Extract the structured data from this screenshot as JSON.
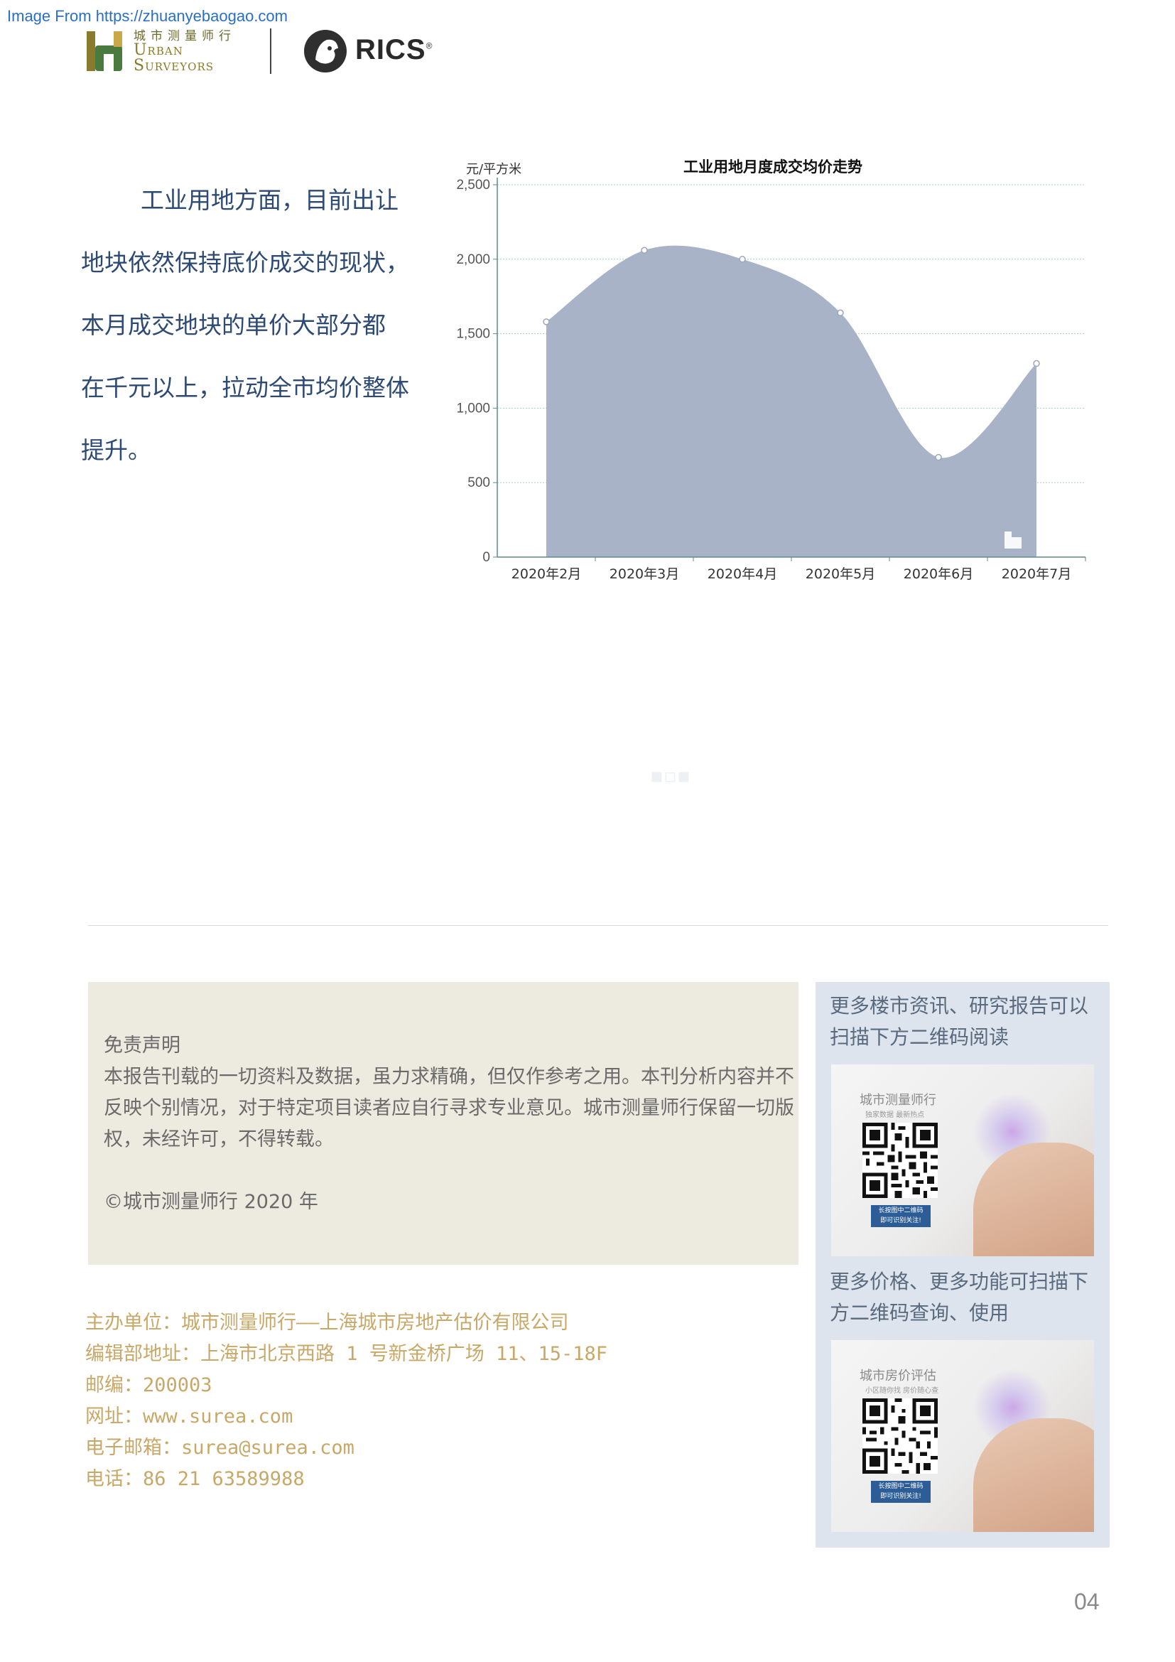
{
  "source_note": "Image From https://zhuanyebaogao.com",
  "header": {
    "logo_cn": "城市测量师行",
    "logo_en_line1": "Urban",
    "logo_en_line2": "Surveyors",
    "rics_label": "RICS",
    "rics_reg": "®"
  },
  "paragraph": {
    "line1": "工业用地方面，目前出让",
    "line2": "地块依然保持底价成交的现状，",
    "line3": "本月成交地块的单价大部分都",
    "line4": "在千元以上，拉动全市均价整体",
    "line5": "提升。"
  },
  "chart_data": {
    "type": "area",
    "title": "工业用地月度成交均价走势",
    "ylabel": "元/平方米",
    "xlabel": "",
    "categories": [
      "2020年2月",
      "2020年3月",
      "2020年4月",
      "2020年5月",
      "2020年6月",
      "2020年7月"
    ],
    "values": [
      1580,
      2060,
      2000,
      1640,
      670,
      1300
    ],
    "ylim": [
      0,
      2500
    ],
    "yticks": [
      "0",
      "500",
      "1,000",
      "1,500",
      "2,000",
      "2,500"
    ],
    "grid": true,
    "legend": "none",
    "fill_color": "#a9b3c8",
    "axis_color": "#5c8a8a"
  },
  "disclaimer": {
    "title": "免责声明",
    "body": "本报告刊载的一切资料及数据，虽力求精确，但仅作参考之用。本刊分析内容并不反映个别情况，对于特定项目读者应自行寻求专业意见。城市测量师行保留一切版权，未经许可，不得转载。",
    "copyright": "©城市测量师行 2020 年"
  },
  "contact": {
    "organizer": "主办单位：城市测量师行——上海城市房地产估价有限公司",
    "address": "编辑部地址：上海市北京西路 1 号新金桥广场 11、15-18F",
    "postcode": "邮编：200003",
    "website": "网址：www.surea.com",
    "email": "电子邮箱：surea@surea.com",
    "phone": "电话：86 21 63589988"
  },
  "panel": {
    "text1": "更多楼市资讯、研究报告可以扫描下方二维码阅读",
    "card1_title": "城市测量师行",
    "card1_sub": "独家数据  最新热点",
    "card1_btn": "长按图中二维码\n即可识别关注!",
    "text2": "更多价格、更多功能可扫描下方二维码查询、使用",
    "card2_title": "城市房价评估",
    "card2_sub": "小区随你找  房价随心查",
    "card2_btn": "长按图中二维码\n即可识别关注!"
  },
  "page_number": "04",
  "colors": {
    "paragraph_text": "#2d4a74",
    "contact_text": "#c8a868",
    "disclaimer_bg": "#edeae0",
    "panel_bg": "#dde4ee"
  }
}
